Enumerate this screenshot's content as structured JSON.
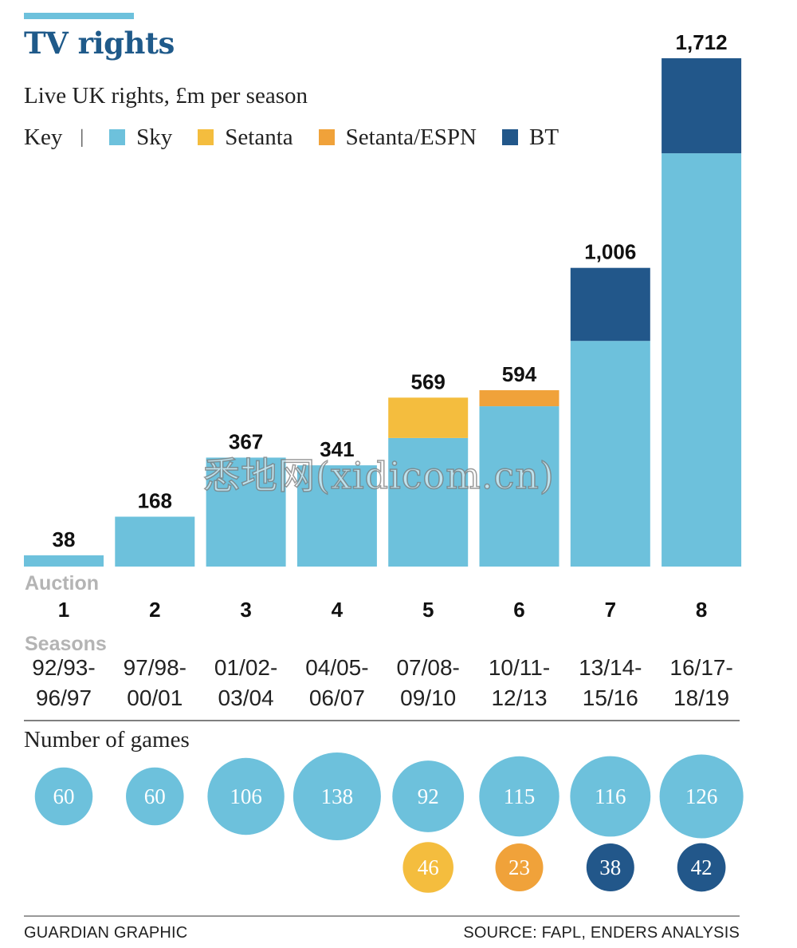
{
  "header": {
    "title": "TV rights",
    "subtitle": "Live UK rights, £m per season"
  },
  "legend": {
    "key_label": "Key",
    "separator": "|",
    "items": [
      {
        "label": "Sky",
        "color": "#6dc1dc"
      },
      {
        "label": "Setanta",
        "color": "#f4bd3e"
      },
      {
        "label": "Setanta/ESPN",
        "color": "#f0a23a"
      },
      {
        "label": "BT",
        "color": "#22578a"
      }
    ]
  },
  "chart_data": {
    "type": "bar",
    "stacked": true,
    "title": "TV rights",
    "subtitle": "Live UK rights, £m per season",
    "unit": "£m per season",
    "categories": [
      "1",
      "2",
      "3",
      "4",
      "5",
      "6",
      "7",
      "8"
    ],
    "seasons": [
      "92/93-96/97",
      "97/98-00/01",
      "01/02-03/04",
      "04/05-06/07",
      "07/08-09/10",
      "10/11-12/13",
      "13/14-15/16",
      "16/17-18/19"
    ],
    "totals": [
      "38",
      "168",
      "367",
      "341",
      "569",
      "594",
      "1,006",
      "1,712"
    ],
    "series": [
      {
        "name": "Sky",
        "color": "#6dc1dc",
        "values": [
          38,
          168,
          367,
          341,
          433,
          540,
          760,
          1392
        ]
      },
      {
        "name": "Setanta",
        "color": "#f4bd3e",
        "values": [
          0,
          0,
          0,
          0,
          136,
          0,
          0,
          0
        ]
      },
      {
        "name": "Setanta/ESPN",
        "color": "#f0a23a",
        "values": [
          0,
          0,
          0,
          0,
          0,
          54,
          0,
          0
        ]
      },
      {
        "name": "BT",
        "color": "#22578a",
        "values": [
          0,
          0,
          0,
          0,
          0,
          0,
          246,
          320
        ]
      }
    ],
    "ylim": [
      0,
      1712
    ],
    "xlabel": "Auction",
    "seasons_label": "Seasons",
    "games": {
      "title": "Number of games",
      "primary": [
        60,
        60,
        106,
        138,
        92,
        115,
        116,
        126
      ],
      "secondary": [
        null,
        null,
        null,
        null,
        46,
        23,
        38,
        42
      ],
      "primary_color": "#6dc1dc",
      "secondary_colors": [
        null,
        null,
        null,
        null,
        "#f4bd3e",
        "#f0a23a",
        "#22578a",
        "#22578a"
      ]
    }
  },
  "footer": {
    "left": "GUARDIAN GRAPHIC",
    "right": "SOURCE: FAPL, ENDERS ANALYSIS"
  },
  "watermark": "悉地网(xidicom.cn)"
}
